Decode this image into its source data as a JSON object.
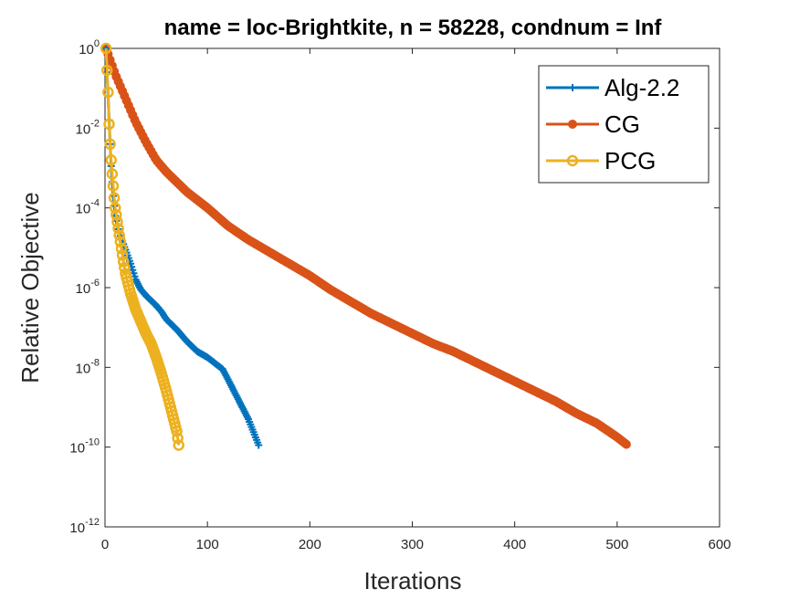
{
  "chart_data": {
    "type": "line",
    "title": "name = loc-Brightkite, n = 58228, condnum = Inf",
    "xlabel": "Iterations",
    "ylabel": "Relative Objective",
    "xlim": [
      0,
      600
    ],
    "ylim_log10": [
      -12,
      0
    ],
    "yscale": "log",
    "xticks": [
      0,
      100,
      200,
      300,
      400,
      500,
      600
    ],
    "yticks": [
      {
        "base": "10",
        "exp": "0"
      },
      {
        "base": "10",
        "exp": "-2"
      },
      {
        "base": "10",
        "exp": "-4"
      },
      {
        "base": "10",
        "exp": "-6"
      },
      {
        "base": "10",
        "exp": "-8"
      },
      {
        "base": "10",
        "exp": "-10"
      },
      {
        "base": "10",
        "exp": "-12"
      }
    ],
    "legend_position": "top-right",
    "series": [
      {
        "name": "Alg-2.2",
        "color": "#0072bd",
        "marker": "plus",
        "points": [
          [
            1,
            0.0
          ],
          [
            2,
            -0.6
          ],
          [
            3,
            -1.2
          ],
          [
            4,
            -1.8
          ],
          [
            5,
            -2.4
          ],
          [
            6,
            -2.95
          ],
          [
            7,
            -3.35
          ],
          [
            8,
            -3.7
          ],
          [
            9,
            -3.95
          ],
          [
            10,
            -4.2
          ],
          [
            12,
            -4.45
          ],
          [
            15,
            -4.7
          ],
          [
            20,
            -5.05
          ],
          [
            25,
            -5.4
          ],
          [
            30,
            -5.8
          ],
          [
            35,
            -6.05
          ],
          [
            40,
            -6.2
          ],
          [
            50,
            -6.45
          ],
          [
            55,
            -6.6
          ],
          [
            60,
            -6.8
          ],
          [
            70,
            -7.05
          ],
          [
            80,
            -7.35
          ],
          [
            90,
            -7.6
          ],
          [
            100,
            -7.75
          ],
          [
            110,
            -7.95
          ],
          [
            115,
            -8.05
          ],
          [
            120,
            -8.3
          ],
          [
            130,
            -8.8
          ],
          [
            140,
            -9.3
          ],
          [
            150,
            -9.95
          ]
        ]
      },
      {
        "name": "CG",
        "color": "#d95319",
        "marker": "dot",
        "points": [
          [
            1,
            0.0
          ],
          [
            10,
            -0.65
          ],
          [
            20,
            -1.25
          ],
          [
            30,
            -1.85
          ],
          [
            40,
            -2.35
          ],
          [
            50,
            -2.8
          ],
          [
            60,
            -3.1
          ],
          [
            80,
            -3.6
          ],
          [
            100,
            -4.0
          ],
          [
            120,
            -4.45
          ],
          [
            140,
            -4.8
          ],
          [
            160,
            -5.1
          ],
          [
            180,
            -5.4
          ],
          [
            200,
            -5.7
          ],
          [
            220,
            -6.05
          ],
          [
            240,
            -6.35
          ],
          [
            260,
            -6.65
          ],
          [
            280,
            -6.9
          ],
          [
            300,
            -7.15
          ],
          [
            320,
            -7.4
          ],
          [
            340,
            -7.6
          ],
          [
            360,
            -7.85
          ],
          [
            380,
            -8.1
          ],
          [
            400,
            -8.35
          ],
          [
            420,
            -8.6
          ],
          [
            440,
            -8.85
          ],
          [
            460,
            -9.15
          ],
          [
            480,
            -9.4
          ],
          [
            500,
            -9.75
          ],
          [
            510,
            -9.95
          ]
        ]
      },
      {
        "name": "PCG",
        "color": "#edb120",
        "marker": "circle",
        "points": [
          [
            1,
            0.0
          ],
          [
            2,
            -0.55
          ],
          [
            3,
            -1.1
          ],
          [
            4,
            -1.9
          ],
          [
            5,
            -2.4
          ],
          [
            6,
            -2.8
          ],
          [
            7,
            -3.15
          ],
          [
            8,
            -3.45
          ],
          [
            9,
            -3.75
          ],
          [
            10,
            -4.0
          ],
          [
            12,
            -4.35
          ],
          [
            15,
            -4.85
          ],
          [
            18,
            -5.35
          ],
          [
            20,
            -5.65
          ],
          [
            25,
            -6.15
          ],
          [
            30,
            -6.55
          ],
          [
            35,
            -6.85
          ],
          [
            40,
            -7.15
          ],
          [
            45,
            -7.4
          ],
          [
            50,
            -7.75
          ],
          [
            55,
            -8.15
          ],
          [
            60,
            -8.6
          ],
          [
            65,
            -9.1
          ],
          [
            70,
            -9.6
          ],
          [
            72,
            -9.95
          ]
        ]
      }
    ]
  }
}
